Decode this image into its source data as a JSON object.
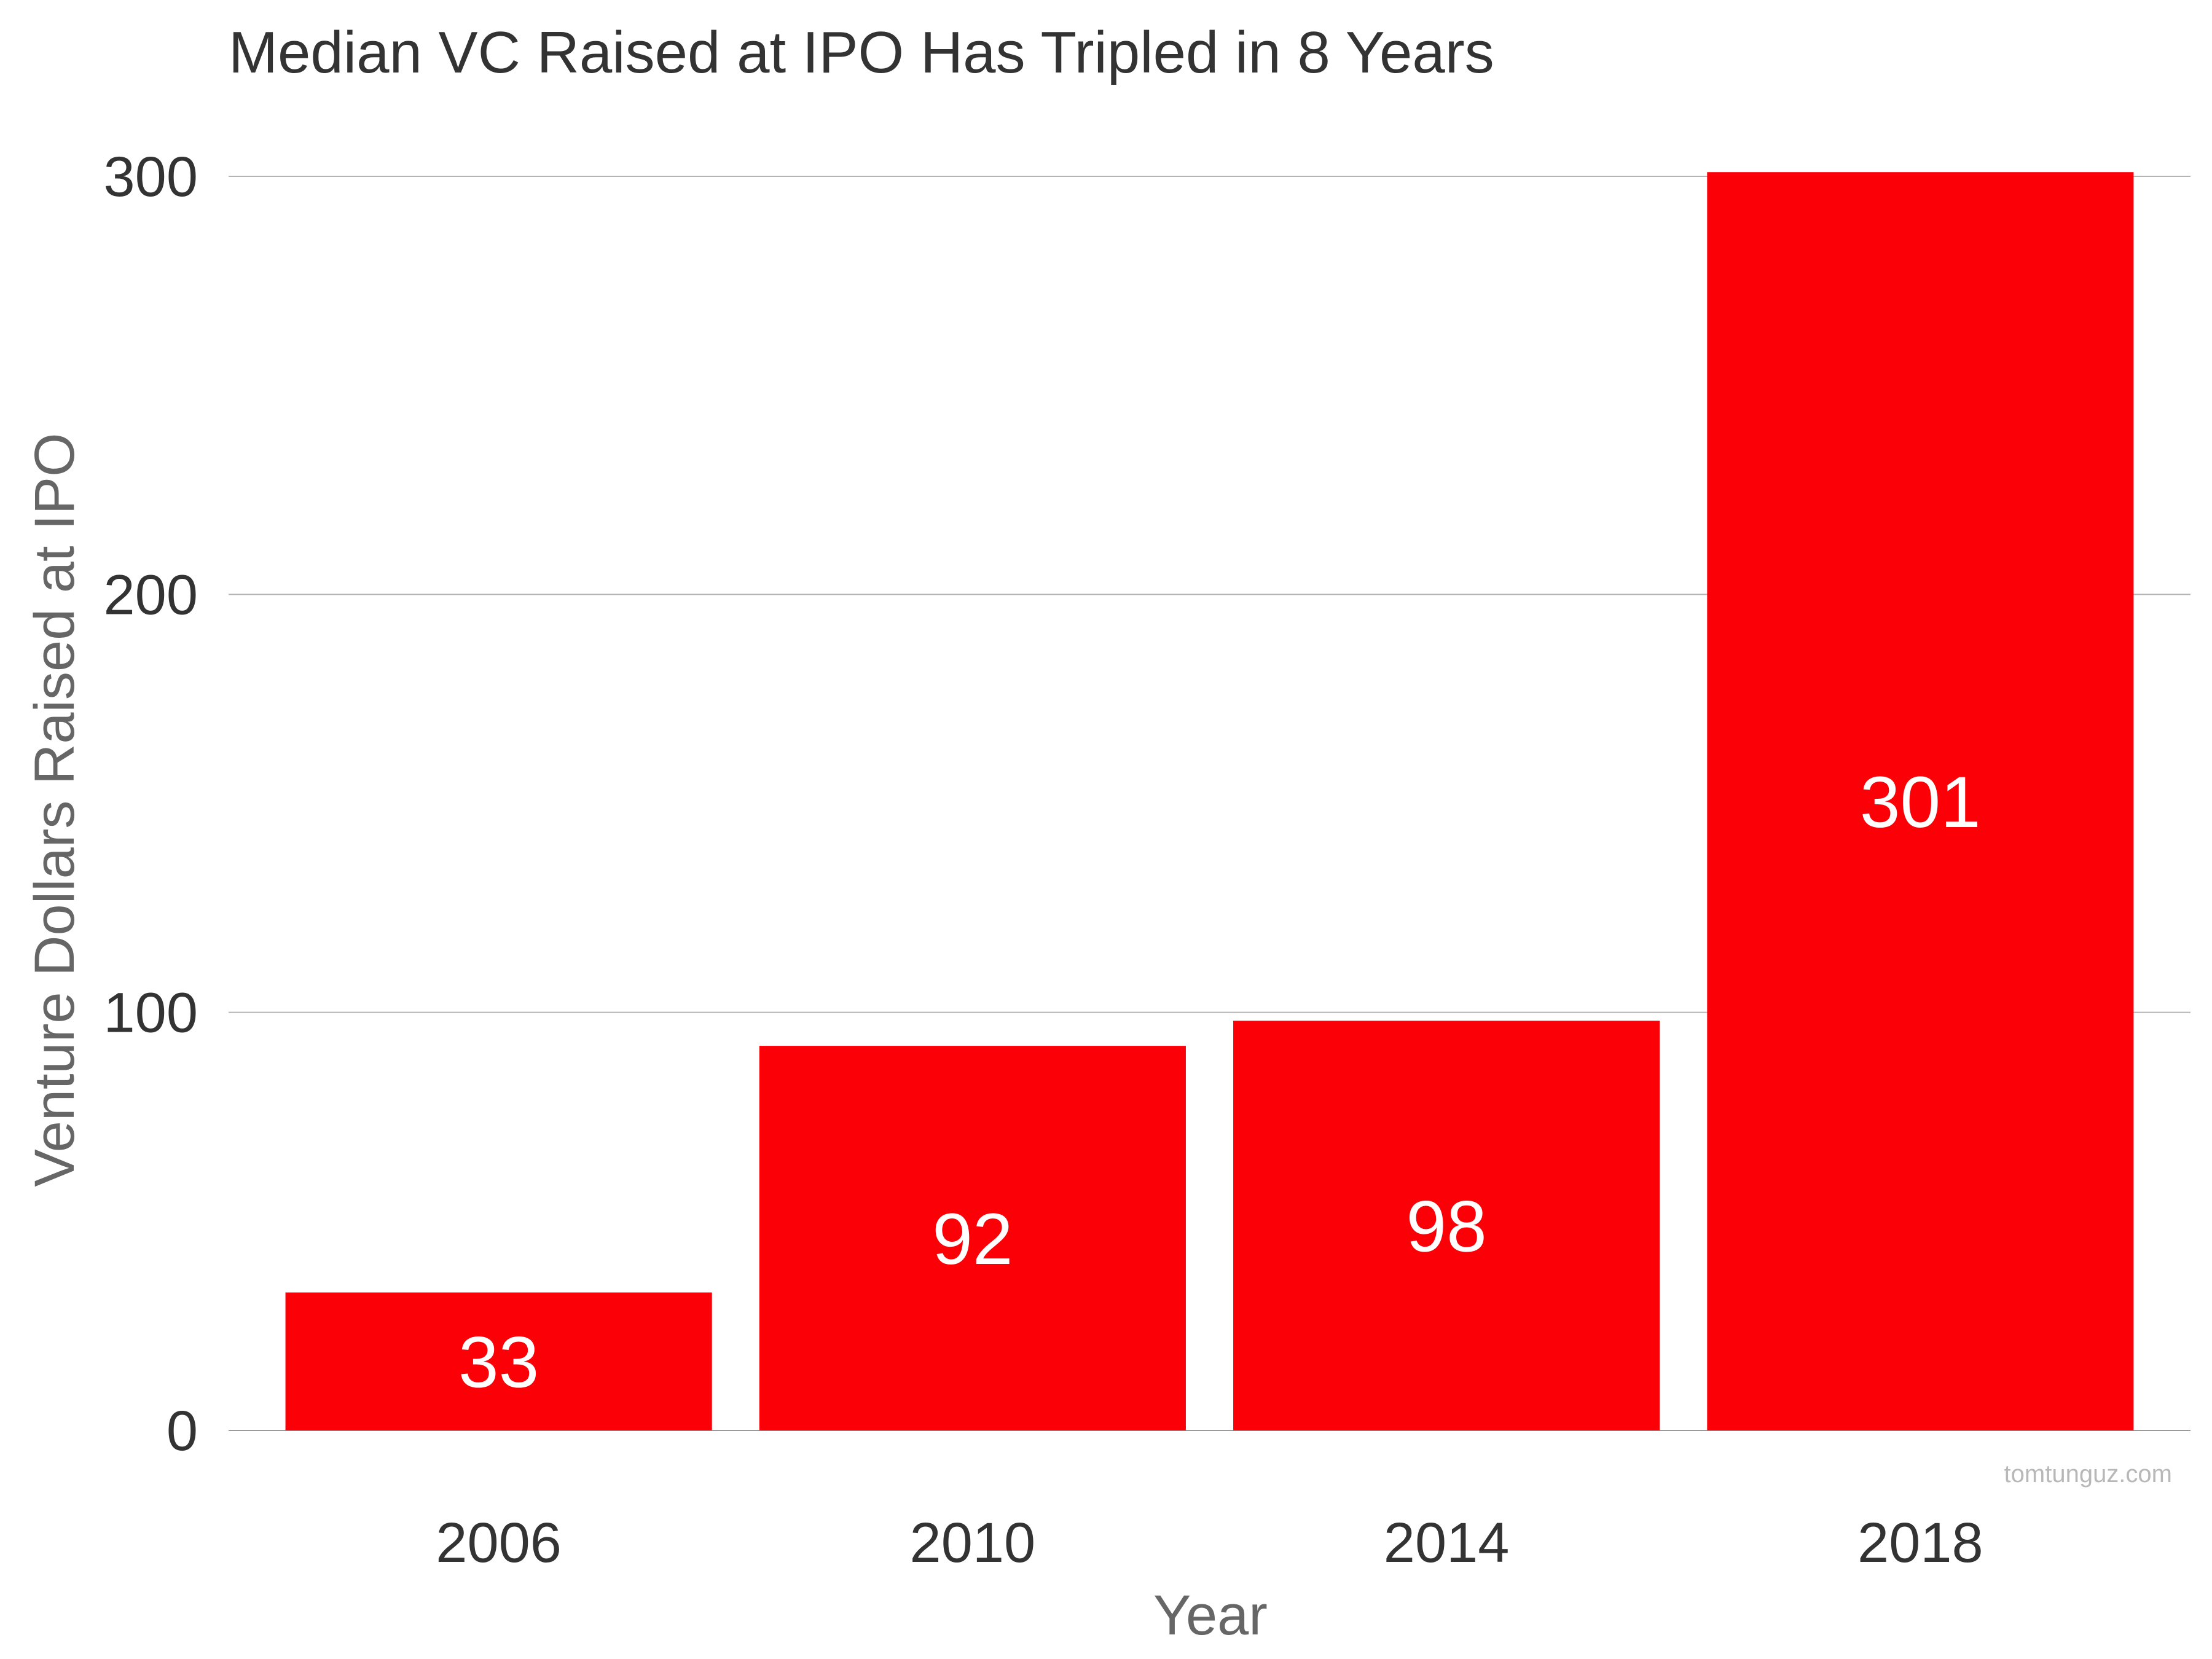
{
  "chart_data": {
    "type": "bar",
    "title": "Median VC Raised at IPO Has Tripled in 8 Years",
    "xlabel": "Year",
    "ylabel": "Venture Dollars Raised at IPO",
    "categories": [
      "2006",
      "2010",
      "2014",
      "2018"
    ],
    "values": [
      33,
      92,
      98,
      301
    ],
    "data_labels": [
      "33",
      "92",
      "98",
      "301"
    ],
    "y_ticks": [
      0,
      100,
      200,
      300
    ],
    "ylim": [
      0,
      300
    ],
    "grid": true,
    "legend": "none",
    "bar_color": "#fc0008"
  },
  "watermark": "tomtunguz.com"
}
